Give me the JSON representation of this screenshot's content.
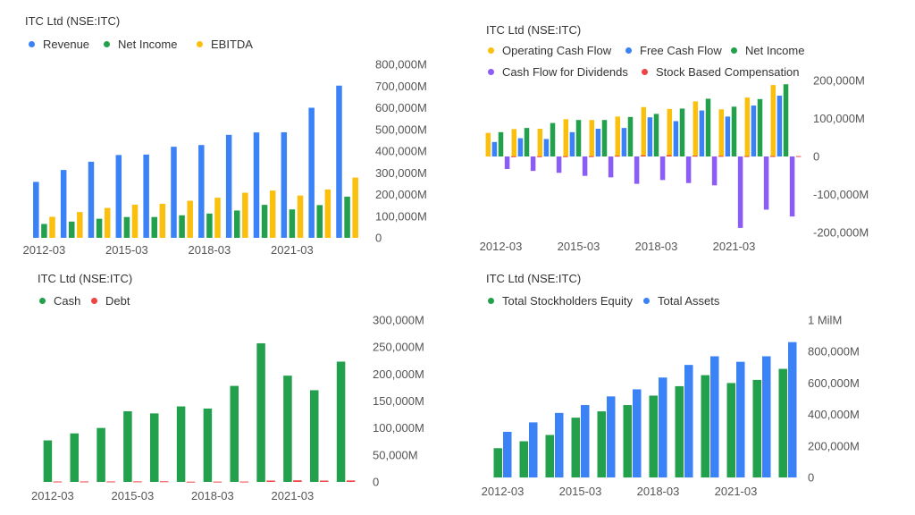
{
  "chart_data": [
    {
      "type": "bar",
      "title": "ITC Ltd (NSE:ITC)",
      "categories": [
        "2012-03",
        "2013-03",
        "2014-03",
        "2015-03",
        "2016-03",
        "2017-03",
        "2018-03",
        "2019-03",
        "2020-03",
        "2021-03",
        "2022-03",
        "2023-03"
      ],
      "x_tick_labels": [
        "2012-03",
        "2015-03",
        "2018-03",
        "2021-03"
      ],
      "series": [
        {
          "name": "Revenue",
          "color": "#3b82f6",
          "values": [
            258000,
            313000,
            351000,
            382000,
            384000,
            420000,
            428000,
            475000,
            486000,
            487000,
            600000,
            702000
          ]
        },
        {
          "name": "Net Income",
          "color": "#22a04b",
          "values": [
            64000,
            75000,
            88000,
            96000,
            96000,
            104000,
            112000,
            126000,
            152000,
            131000,
            151000,
            190000
          ]
        },
        {
          "name": "EBITDA",
          "color": "#fbbf0e",
          "values": [
            97000,
            119000,
            138000,
            153000,
            157000,
            171000,
            185000,
            208000,
            218000,
            195000,
            223000,
            278000
          ]
        }
      ],
      "y_tick_labels": [
        "800,000M",
        "700,000M",
        "600,000M",
        "500,000M",
        "400,000M",
        "300,000M",
        "200,000M",
        "100,000M",
        "0"
      ],
      "ylim": [
        0,
        800000
      ],
      "legend_position": "top-left"
    },
    {
      "type": "bar",
      "title": "ITC Ltd (NSE:ITC)",
      "categories": [
        "2012-03",
        "2013-03",
        "2014-03",
        "2015-03",
        "2016-03",
        "2017-03",
        "2018-03",
        "2019-03",
        "2020-03",
        "2021-03",
        "2022-03",
        "2023-03"
      ],
      "x_tick_labels": [
        "2012-03",
        "2015-03",
        "2018-03",
        "2021-03"
      ],
      "series": [
        {
          "name": "Operating Cash Flow",
          "color": "#fbbf0e",
          "values": [
            62000,
            72000,
            73000,
            98000,
            96000,
            105000,
            130000,
            125000,
            145000,
            124000,
            155000,
            188000
          ]
        },
        {
          "name": "Free Cash Flow",
          "color": "#3b82f6",
          "values": [
            38000,
            48000,
            46000,
            64000,
            73000,
            75000,
            103000,
            93000,
            121000,
            105000,
            134000,
            160000
          ]
        },
        {
          "name": "Net Income",
          "color": "#22a04b",
          "values": [
            64000,
            75000,
            88000,
            96000,
            96000,
            104000,
            112000,
            126000,
            152000,
            131000,
            151000,
            190000
          ]
        },
        {
          "name": "Cash Flow for Dividends",
          "color": "#8b5cf6",
          "values": [
            -33000,
            -38000,
            -43000,
            -51000,
            -55000,
            -72000,
            -62000,
            -70000,
            -76000,
            -188000,
            -140000,
            -158000
          ]
        },
        {
          "name": "Stock Based Compensation",
          "color": "#ef4444",
          "values": [
            500,
            500,
            600,
            700,
            2000,
            3000,
            3500,
            2000,
            1500,
            1000,
            1000,
            1000
          ]
        }
      ],
      "y_tick_labels": [
        "200,000M",
        "100,000M",
        "0",
        "-100,000M",
        "-200,000M"
      ],
      "ylim": [
        -200000,
        200000
      ],
      "legend_position": "top-left"
    },
    {
      "type": "bar",
      "title": "ITC Ltd (NSE:ITC)",
      "categories": [
        "2012-03",
        "2013-03",
        "2014-03",
        "2015-03",
        "2016-03",
        "2017-03",
        "2018-03",
        "2019-03",
        "2020-03",
        "2021-03",
        "2022-03",
        "2023-03"
      ],
      "x_tick_labels": [
        "2012-03",
        "2015-03",
        "2018-03",
        "2021-03"
      ],
      "series": [
        {
          "name": "Cash",
          "color": "#22a04b",
          "values": [
            77000,
            90000,
            100000,
            131000,
            127000,
            140000,
            136000,
            178000,
            257000,
            197000,
            170000,
            223000
          ]
        },
        {
          "name": "Debt",
          "color": "#ef4444",
          "values": [
            800,
            900,
            900,
            1000,
            1200,
            500,
            600,
            700,
            2500,
            3000,
            2500,
            2700
          ]
        }
      ],
      "y_tick_labels": [
        "300,000M",
        "250,000M",
        "200,000M",
        "150,000M",
        "100,000M",
        "50,000M",
        "0"
      ],
      "ylim": [
        0,
        300000
      ],
      "legend_position": "top-left"
    },
    {
      "type": "bar",
      "title": "ITC Ltd (NSE:ITC)",
      "categories": [
        "2012-03",
        "2013-03",
        "2014-03",
        "2015-03",
        "2016-03",
        "2017-03",
        "2018-03",
        "2019-03",
        "2020-03",
        "2021-03",
        "2022-03",
        "2023-03"
      ],
      "x_tick_labels": [
        "2012-03",
        "2015-03",
        "2018-03",
        "2021-03"
      ],
      "series": [
        {
          "name": "Total Stockholders Equity",
          "color": "#22a04b",
          "values": [
            186000,
            230000,
            270000,
            380000,
            420000,
            460000,
            520000,
            580000,
            650000,
            600000,
            620000,
            690000
          ]
        },
        {
          "name": "Total Assets",
          "color": "#3b82f6",
          "values": [
            290000,
            350000,
            410000,
            460000,
            515000,
            560000,
            635000,
            715000,
            770000,
            735000,
            770000,
            860000
          ]
        }
      ],
      "y_tick_labels": [
        "1 MilM",
        "800,000M",
        "600,000M",
        "400,000M",
        "200,000M",
        "0"
      ],
      "ylim": [
        0,
        1000000
      ],
      "legend_position": "top-left"
    }
  ]
}
